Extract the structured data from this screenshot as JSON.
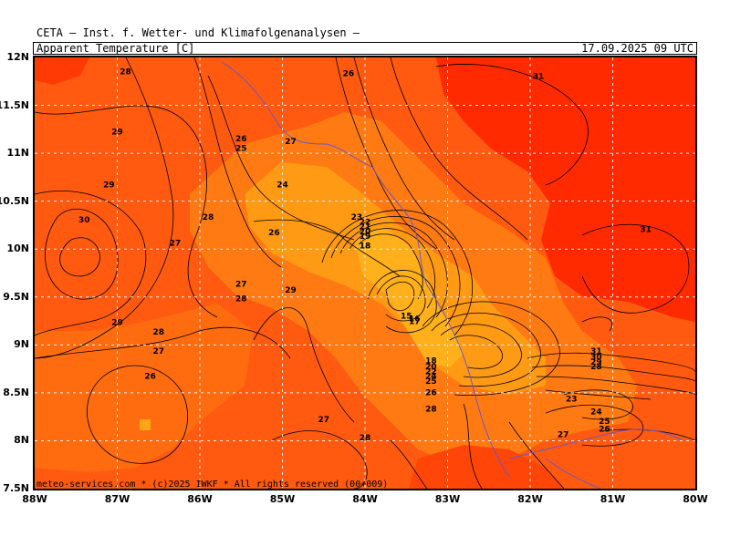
{
  "header": {
    "title": "CETA — Inst. f. Wetter- und Klimafolgenanalysen —",
    "parameter": "Apparent_Temperature_[C]",
    "datetime": "17.09.2025 09 UTC"
  },
  "footer": {
    "credit": "meteo-services.com * (c)2025 IWKF * All rights reserved (00+009)"
  },
  "colors": {
    "hot": "#ff2a00",
    "warm": "#ff5a0f",
    "mid": "#ff7a12",
    "cool": "#ff9a14",
    "coolest": "#ffb01a",
    "frame": "#000000"
  },
  "map": {
    "lon_range": [
      -88,
      -80
    ],
    "lat_range": [
      7.5,
      12
    ],
    "lat_labels": [
      "12N",
      "11.5N",
      "11N",
      "10.5N",
      "10N",
      "9.5N",
      "9N",
      "8.5N",
      "8N",
      "7.5N"
    ],
    "lon_labels": [
      "88W",
      "87W",
      "86W",
      "85W",
      "84W",
      "83W",
      "82W",
      "81W",
      "80W"
    ],
    "contour_labels": [
      {
        "text": "28",
        "lon": -86.9,
        "lat": 11.85
      },
      {
        "text": "26",
        "lon": -84.2,
        "lat": 11.83
      },
      {
        "text": "31",
        "lon": -81.9,
        "lat": 11.8
      },
      {
        "text": "29",
        "lon": -87.0,
        "lat": 11.22
      },
      {
        "text": "26",
        "lon": -85.5,
        "lat": 11.15
      },
      {
        "text": "25",
        "lon": -85.5,
        "lat": 11.05
      },
      {
        "text": "27",
        "lon": -84.9,
        "lat": 11.12
      },
      {
        "text": "29",
        "lon": -87.1,
        "lat": 10.67
      },
      {
        "text": "24",
        "lon": -85.0,
        "lat": 10.67
      },
      {
        "text": "28",
        "lon": -85.9,
        "lat": 10.33
      },
      {
        "text": "23",
        "lon": -84.1,
        "lat": 10.33
      },
      {
        "text": "22",
        "lon": -84.0,
        "lat": 10.28
      },
      {
        "text": "21",
        "lon": -84.0,
        "lat": 10.23
      },
      {
        "text": "20",
        "lon": -84.0,
        "lat": 10.18
      },
      {
        "text": "19",
        "lon": -84.0,
        "lat": 10.13
      },
      {
        "text": "18",
        "lon": -84.0,
        "lat": 10.03
      },
      {
        "text": "30",
        "lon": -87.4,
        "lat": 10.3
      },
      {
        "text": "27",
        "lon": -86.3,
        "lat": 10.06
      },
      {
        "text": "26",
        "lon": -85.1,
        "lat": 10.17
      },
      {
        "text": "31",
        "lon": -80.6,
        "lat": 10.2
      },
      {
        "text": "27",
        "lon": -85.5,
        "lat": 9.63
      },
      {
        "text": "28",
        "lon": -85.5,
        "lat": 9.48
      },
      {
        "text": "29",
        "lon": -84.9,
        "lat": 9.57
      },
      {
        "text": "29",
        "lon": -87.0,
        "lat": 9.23
      },
      {
        "text": "28",
        "lon": -86.5,
        "lat": 9.13
      },
      {
        "text": "15",
        "lon": -83.5,
        "lat": 9.3
      },
      {
        "text": "16",
        "lon": -83.4,
        "lat": 9.27
      },
      {
        "text": "17",
        "lon": -83.4,
        "lat": 9.24
      },
      {
        "text": "27",
        "lon": -86.5,
        "lat": 8.93
      },
      {
        "text": "31",
        "lon": -81.2,
        "lat": 8.93
      },
      {
        "text": "30",
        "lon": -81.2,
        "lat": 8.87
      },
      {
        "text": "29",
        "lon": -81.2,
        "lat": 8.82
      },
      {
        "text": "28",
        "lon": -81.2,
        "lat": 8.77
      },
      {
        "text": "18",
        "lon": -83.2,
        "lat": 8.83
      },
      {
        "text": "20",
        "lon": -83.2,
        "lat": 8.77
      },
      {
        "text": "22",
        "lon": -83.2,
        "lat": 8.72
      },
      {
        "text": "24",
        "lon": -83.2,
        "lat": 8.67
      },
      {
        "text": "25",
        "lon": -83.2,
        "lat": 8.62
      },
      {
        "text": "26",
        "lon": -86.6,
        "lat": 8.67
      },
      {
        "text": "26",
        "lon": -83.2,
        "lat": 8.5
      },
      {
        "text": "23",
        "lon": -81.5,
        "lat": 8.43
      },
      {
        "text": "28",
        "lon": -83.2,
        "lat": 8.33
      },
      {
        "text": "27",
        "lon": -84.5,
        "lat": 8.22
      },
      {
        "text": "24",
        "lon": -81.2,
        "lat": 8.3
      },
      {
        "text": "25",
        "lon": -81.1,
        "lat": 8.2
      },
      {
        "text": "26",
        "lon": -81.1,
        "lat": 8.12
      },
      {
        "text": "27",
        "lon": -81.6,
        "lat": 8.06
      },
      {
        "text": "28",
        "lon": -84.0,
        "lat": 8.03
      }
    ]
  }
}
